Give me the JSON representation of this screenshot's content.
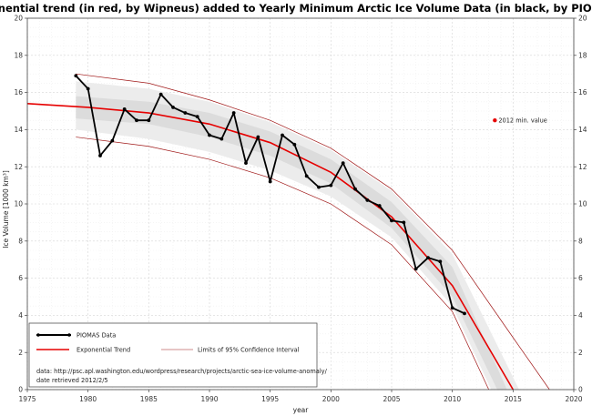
{
  "chart_data": {
    "type": "line",
    "title": "Exponential trend (in red, by Wipneus) added to Yearly Minimum Arctic Ice Volume Data (in black, by PIOMAS)",
    "xlabel": "year",
    "ylabel": "Ice Volume [1000 km³]",
    "xlim": [
      1975,
      2020
    ],
    "ylim": [
      0,
      20
    ],
    "x_ticks": [
      "1975",
      "1980",
      "1985",
      "1990",
      "1995",
      "2000",
      "2005",
      "2010",
      "2015",
      "2020"
    ],
    "y_ticks": [
      "0",
      "2",
      "4",
      "6",
      "8",
      "10",
      "12",
      "14",
      "16",
      "18",
      "20"
    ],
    "grid": true,
    "series": [
      {
        "name": "PIOMAS Data",
        "color": "#000000",
        "x": [
          1979,
          1980,
          1981,
          1982,
          1983,
          1984,
          1985,
          1986,
          1987,
          1988,
          1989,
          1990,
          1991,
          1992,
          1993,
          1994,
          1995,
          1996,
          1997,
          1998,
          1999,
          2000,
          2001,
          2002,
          2003,
          2004,
          2005,
          2006,
          2007,
          2008,
          2009,
          2010,
          2011
        ],
        "y": [
          16.9,
          16.2,
          12.6,
          13.4,
          15.1,
          14.5,
          14.5,
          15.9,
          15.2,
          14.9,
          14.7,
          13.7,
          13.5,
          14.9,
          12.2,
          13.6,
          11.2,
          13.7,
          13.2,
          11.5,
          10.9,
          11.0,
          12.2,
          10.8,
          10.2,
          9.9,
          9.1,
          9.0,
          6.5,
          7.1,
          6.9,
          4.4,
          4.1
        ]
      },
      {
        "name": "Exponential Trend",
        "color": "#e60000",
        "x": [
          1975,
          1980,
          1985,
          1990,
          1995,
          2000,
          2005,
          2010,
          2015
        ],
        "y": [
          15.4,
          15.2,
          14.9,
          14.3,
          13.3,
          11.7,
          9.3,
          5.6,
          0.0
        ]
      },
      {
        "name": "Limits of 95% Confidence Interval",
        "color": "#a01818",
        "upper": {
          "x": [
            1979,
            1985,
            1990,
            1995,
            2000,
            2005,
            2010,
            2015,
            2018
          ],
          "y": [
            17.0,
            16.5,
            15.6,
            14.5,
            13.0,
            10.8,
            7.5,
            2.8,
            0.0
          ]
        },
        "lower": {
          "x": [
            1979,
            1985,
            1990,
            1995,
            2000,
            2005,
            2010,
            2013
          ],
          "y": [
            13.6,
            13.1,
            12.4,
            11.4,
            10.0,
            7.8,
            4.2,
            0.0
          ]
        }
      }
    ],
    "bands": {
      "inner": {
        "upper": {
          "x": [
            1979,
            1985,
            1990,
            1995,
            2000,
            2005,
            2010,
            2014.5
          ],
          "y": [
            15.8,
            15.5,
            14.9,
            13.9,
            12.4,
            10.1,
            6.6,
            0.0
          ]
        },
        "lower": {
          "x": [
            1979,
            1985,
            1990,
            1995,
            2000,
            2005,
            2010,
            2013.7
          ],
          "y": [
            14.6,
            14.3,
            13.6,
            12.6,
            11.1,
            8.7,
            5.0,
            0.0
          ]
        }
      },
      "outer": {
        "upper": {
          "x": [
            1979,
            1985,
            1990,
            1995,
            2000,
            2005,
            2010,
            2015.5
          ],
          "y": [
            16.6,
            16.2,
            15.5,
            14.4,
            12.9,
            10.7,
            7.3,
            0.0
          ]
        },
        "lower": {
          "x": [
            1979,
            1985,
            1990,
            1995,
            2000,
            2005,
            2010,
            2013.2
          ],
          "y": [
            14.0,
            13.5,
            12.8,
            11.8,
            10.4,
            8.2,
            4.5,
            0.0
          ]
        }
      }
    },
    "annotation": {
      "label": "2012 min. value",
      "x": 2012,
      "y": 14.5,
      "color": "#e60000"
    },
    "legend": {
      "placement": "bottom-left",
      "entries": [
        "PIOMAS Data",
        "Exponential Trend",
        "Limits of 95% Confidence Interval"
      ],
      "note_line1": "data: http://psc.apl.washington.edu/wordpress/research/projects/arctic-sea-ice-volume-anomaly/",
      "note_line2": "date retrieved 2012/2/5"
    }
  }
}
